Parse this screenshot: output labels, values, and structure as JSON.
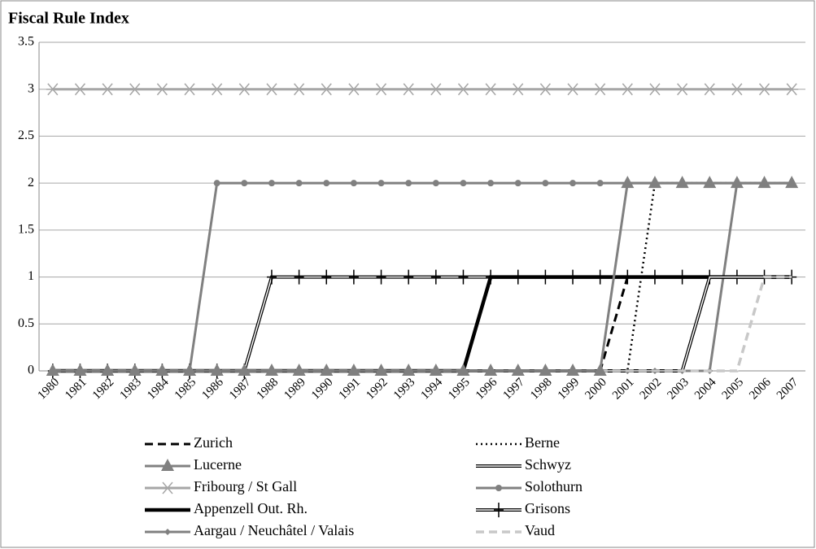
{
  "chart_data": {
    "type": "line",
    "title": "Fiscal Rule Index",
    "categories": [
      "1980",
      "1981",
      "1982",
      "1983",
      "1984",
      "1985",
      "1986",
      "1987",
      "1988",
      "1989",
      "1990",
      "1991",
      "1992",
      "1993",
      "1994",
      "1995",
      "1996",
      "1997",
      "1998",
      "1999",
      "2000",
      "2001",
      "2002",
      "2003",
      "2004",
      "2005",
      "2006",
      "2007"
    ],
    "ylim": [
      0,
      3.5
    ],
    "yticks": [
      0,
      0.5,
      1,
      1.5,
      2,
      2.5,
      3,
      3.5
    ],
    "grid": true,
    "series": [
      {
        "name": "Fribourg / St Gall",
        "color": "#a6a6a6",
        "line_style": "solid",
        "marker": "asterisk",
        "values": [
          3,
          3,
          3,
          3,
          3,
          3,
          3,
          3,
          3,
          3,
          3,
          3,
          3,
          3,
          3,
          3,
          3,
          3,
          3,
          3,
          3,
          3,
          3,
          3,
          3,
          3,
          3,
          3
        ]
      },
      {
        "name": "Solothurn",
        "color": "#808080",
        "line_style": "solid",
        "marker": "circle",
        "values": [
          0,
          0,
          0,
          0,
          0,
          0,
          2,
          2,
          2,
          2,
          2,
          2,
          2,
          2,
          2,
          2,
          2,
          2,
          2,
          2,
          2,
          2,
          2,
          2,
          2,
          2,
          2,
          2
        ]
      },
      {
        "name": "Aargau / Neuchâtel / Valais",
        "color": "#808080",
        "line_style": "solid",
        "marker": "diamond",
        "values": [
          0,
          0,
          0,
          0,
          0,
          0,
          0,
          0,
          0,
          0,
          0,
          0,
          0,
          0,
          0,
          0,
          0,
          0,
          0,
          0,
          0,
          0,
          0,
          0,
          0,
          2,
          2,
          2
        ]
      },
      {
        "name": "Grisons",
        "color": "#000000",
        "line_style": "double",
        "marker": "plus",
        "values": [
          0,
          0,
          0,
          0,
          0,
          0,
          0,
          0,
          1,
          1,
          1,
          1,
          1,
          1,
          1,
          1,
          1,
          1,
          1,
          1,
          1,
          1,
          1,
          1,
          1,
          1,
          1,
          1
        ]
      },
      {
        "name": "Appenzell Out. Rh.",
        "color": "#000000",
        "line_style": "thick",
        "marker": "none",
        "values": [
          0,
          0,
          0,
          0,
          0,
          0,
          0,
          0,
          0,
          0,
          0,
          0,
          0,
          0,
          0,
          0,
          1,
          1,
          1,
          1,
          1,
          1,
          1,
          1,
          1,
          1,
          1,
          1
        ]
      },
      {
        "name": "Zurich",
        "color": "#000000",
        "line_style": "dashed",
        "marker": "none",
        "values": [
          0,
          0,
          0,
          0,
          0,
          0,
          0,
          0,
          0,
          0,
          0,
          0,
          0,
          0,
          0,
          0,
          0,
          0,
          0,
          0,
          0,
          1,
          1,
          1,
          1,
          1,
          1,
          1
        ]
      },
      {
        "name": "Berne",
        "color": "#000000",
        "line_style": "dotted",
        "marker": "none",
        "values": [
          0,
          0,
          0,
          0,
          0,
          0,
          0,
          0,
          0,
          0,
          0,
          0,
          0,
          0,
          0,
          0,
          0,
          0,
          0,
          0,
          0,
          0,
          2,
          2,
          2,
          2,
          2,
          2
        ]
      },
      {
        "name": "Schwyz",
        "color": "#000000",
        "line_style": "double",
        "marker": "none",
        "values": [
          0,
          0,
          0,
          0,
          0,
          0,
          0,
          0,
          0,
          0,
          0,
          0,
          0,
          0,
          0,
          0,
          0,
          0,
          0,
          0,
          0,
          0,
          0,
          0,
          1,
          1,
          1,
          1
        ]
      },
      {
        "name": "Vaud",
        "color": "#c8c8c8",
        "line_style": "dashed-thick",
        "marker": "none",
        "values": [
          0,
          0,
          0,
          0,
          0,
          0,
          0,
          0,
          0,
          0,
          0,
          0,
          0,
          0,
          0,
          0,
          0,
          0,
          0,
          0,
          0,
          0,
          0,
          0,
          0,
          0,
          1,
          1
        ]
      },
      {
        "name": "Lucerne",
        "color": "#808080",
        "line_style": "solid",
        "marker": "triangle",
        "values": [
          0,
          0,
          0,
          0,
          0,
          0,
          0,
          0,
          0,
          0,
          0,
          0,
          0,
          0,
          0,
          0,
          0,
          0,
          0,
          0,
          0,
          2,
          2,
          2,
          2,
          2,
          2,
          2
        ]
      }
    ]
  }
}
